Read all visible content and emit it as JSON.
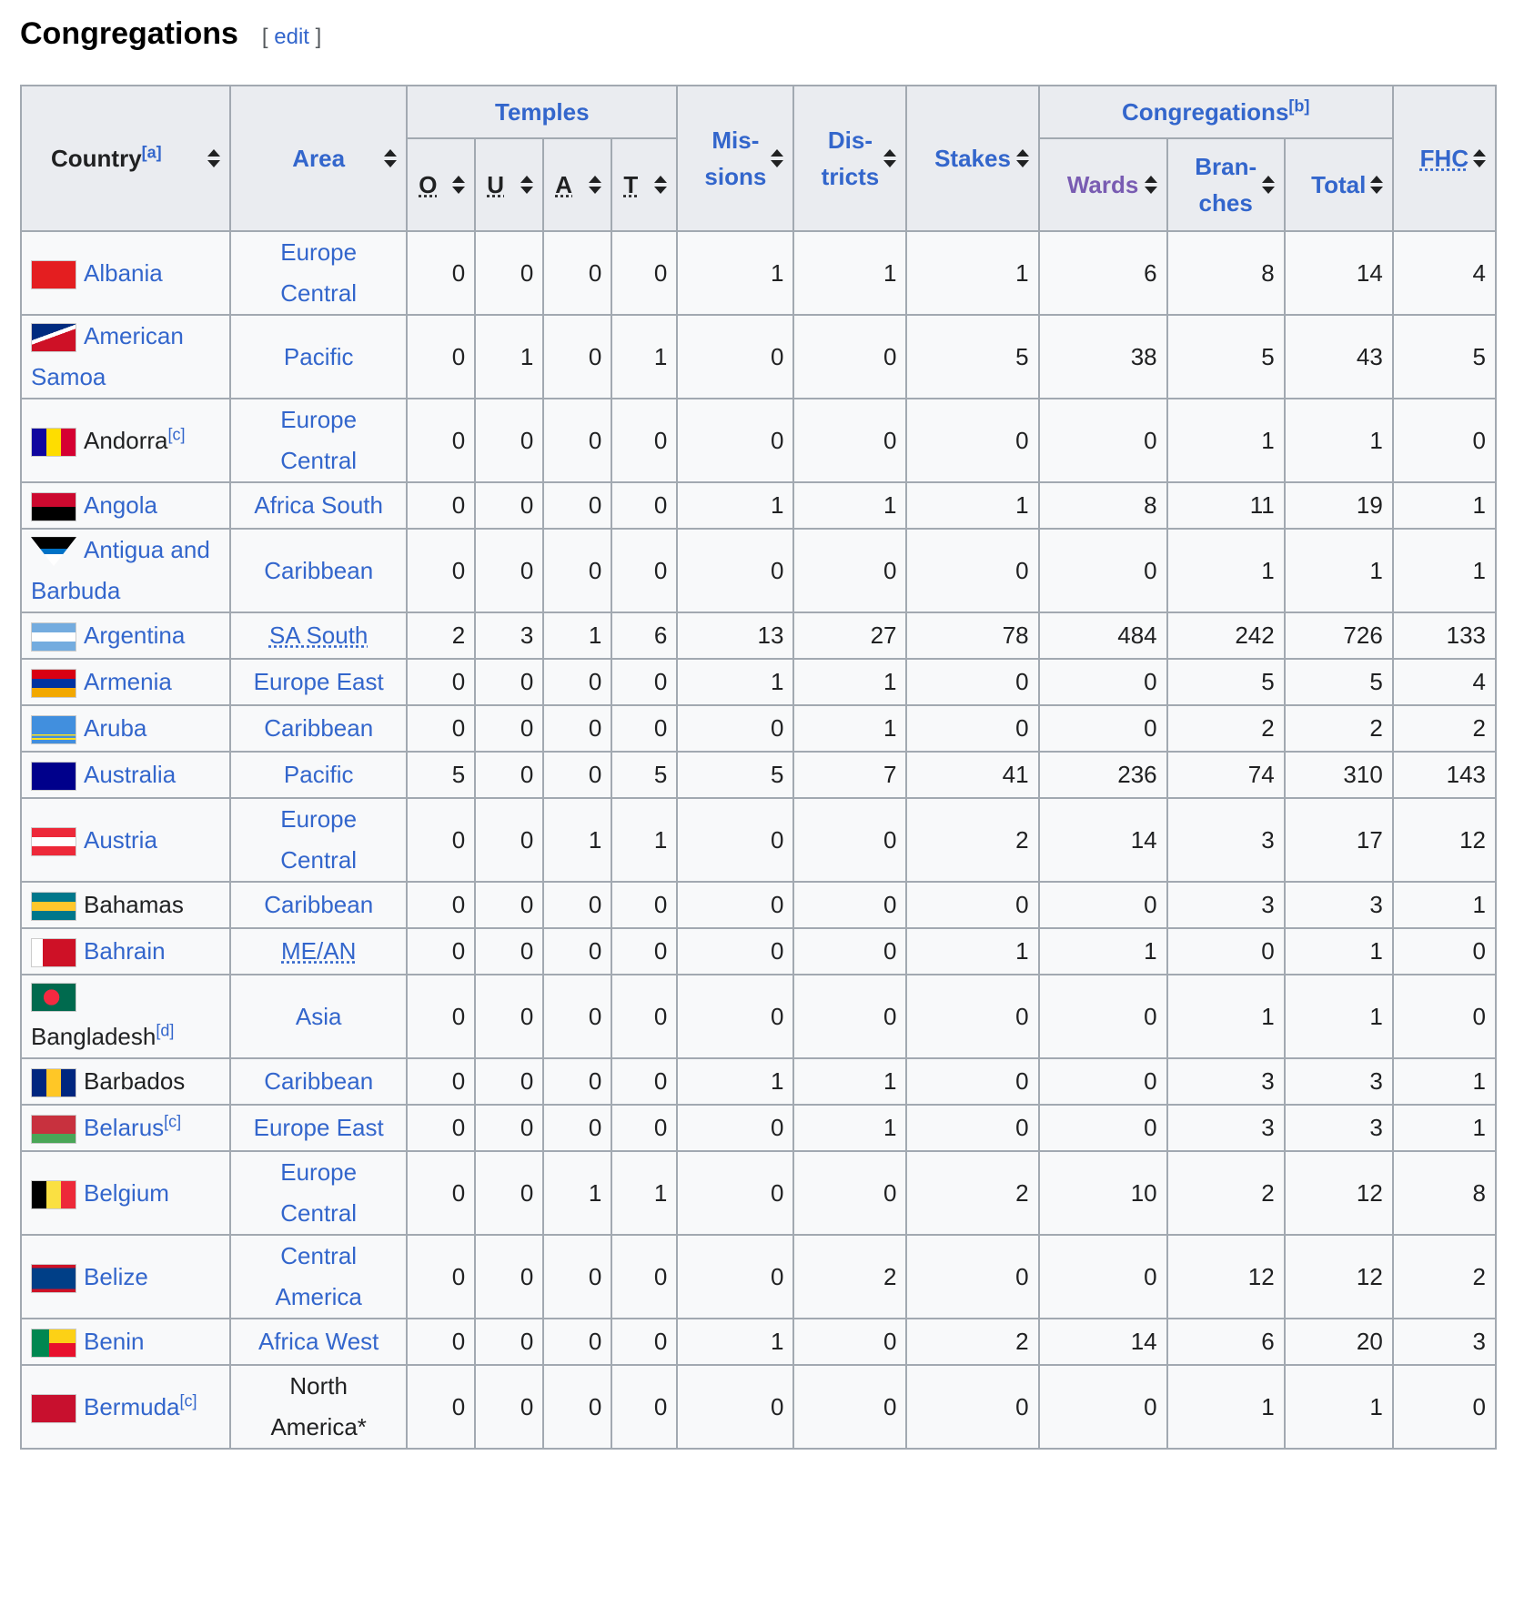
{
  "section": {
    "title": "Congregations",
    "edit_open": "[ ",
    "edit_label": "edit",
    "edit_close": " ]"
  },
  "headers": {
    "country": "Country",
    "country_note": "[a]",
    "area": "Area",
    "temples": "Temples",
    "o": "O",
    "u": "U",
    "a": "A",
    "t": "T",
    "missions_1": "Mis-",
    "missions_2": "sions",
    "districts_1": "Dis-",
    "districts_2": "tricts",
    "stakes": "Stakes",
    "congregations": "Congregations",
    "congregations_note": "[b]",
    "wards": "Wards",
    "branches_1": "Bran-",
    "branches_2": "ches",
    "total": "Total",
    "fhc": "FHC"
  },
  "colors": {
    "link": "#3366cc",
    "visited": "#795cb2",
    "header_bg": "#eaecf0",
    "cell_bg": "#f8f9fa",
    "border": "#a2a9b1"
  },
  "rows": [
    {
      "country": "Albania",
      "note": "",
      "link": true,
      "flag": "albania-flag",
      "area": [
        "Europe",
        "Central"
      ],
      "area_style": "link",
      "vals": [
        "0",
        "0",
        "0",
        "0",
        "1",
        "1",
        "1",
        "6",
        "8",
        "14",
        "4"
      ]
    },
    {
      "country": "American Samoa",
      "note": "",
      "link": true,
      "flag": "american-samoa-flag",
      "area": [
        "Pacific"
      ],
      "area_style": "link",
      "vals": [
        "0",
        "1",
        "0",
        "1",
        "0",
        "0",
        "5",
        "38",
        "5",
        "43",
        "5"
      ]
    },
    {
      "country": "Andorra",
      "note": "[c]",
      "link": false,
      "flag": "andorra-flag",
      "area": [
        "Europe",
        "Central"
      ],
      "area_style": "link",
      "vals": [
        "0",
        "0",
        "0",
        "0",
        "0",
        "0",
        "0",
        "0",
        "1",
        "1",
        "0"
      ]
    },
    {
      "country": "Angola",
      "note": "",
      "link": true,
      "flag": "angola-flag",
      "area": [
        "Africa South"
      ],
      "area_style": "link",
      "vals": [
        "0",
        "0",
        "0",
        "0",
        "1",
        "1",
        "1",
        "8",
        "11",
        "19",
        "1"
      ]
    },
    {
      "country": "Antigua and Barbuda",
      "note": "",
      "link": true,
      "flag": "antigua-flag",
      "area": [
        "Caribbean"
      ],
      "area_style": "link",
      "vals": [
        "0",
        "0",
        "0",
        "0",
        "0",
        "0",
        "0",
        "0",
        "1",
        "1",
        "1"
      ]
    },
    {
      "country": "Argentina",
      "note": "",
      "link": true,
      "flag": "argentina-flag",
      "area": [
        "SA South"
      ],
      "area_style": "abbr",
      "vals": [
        "2",
        "3",
        "1",
        "6",
        "13",
        "27",
        "78",
        "484",
        "242",
        "726",
        "133"
      ]
    },
    {
      "country": "Armenia",
      "note": "",
      "link": true,
      "flag": "armenia-flag",
      "area": [
        "Europe East"
      ],
      "area_style": "link",
      "vals": [
        "0",
        "0",
        "0",
        "0",
        "1",
        "1",
        "0",
        "0",
        "5",
        "5",
        "4"
      ]
    },
    {
      "country": "Aruba",
      "note": "",
      "link": true,
      "flag": "aruba-flag",
      "area": [
        "Caribbean"
      ],
      "area_style": "link",
      "vals": [
        "0",
        "0",
        "0",
        "0",
        "0",
        "1",
        "0",
        "0",
        "2",
        "2",
        "2"
      ]
    },
    {
      "country": "Australia",
      "note": "",
      "link": true,
      "flag": "australia-flag",
      "area": [
        "Pacific"
      ],
      "area_style": "link",
      "vals": [
        "5",
        "0",
        "0",
        "5",
        "5",
        "7",
        "41",
        "236",
        "74",
        "310",
        "143"
      ]
    },
    {
      "country": "Austria",
      "note": "",
      "link": true,
      "flag": "austria-flag",
      "area": [
        "Europe",
        "Central"
      ],
      "area_style": "link",
      "vals": [
        "0",
        "0",
        "1",
        "1",
        "0",
        "0",
        "2",
        "14",
        "3",
        "17",
        "12"
      ]
    },
    {
      "country": "Bahamas",
      "note": "",
      "link": false,
      "flag": "bahamas-flag",
      "area": [
        "Caribbean"
      ],
      "area_style": "link",
      "vals": [
        "0",
        "0",
        "0",
        "0",
        "0",
        "0",
        "0",
        "0",
        "3",
        "3",
        "1"
      ]
    },
    {
      "country": "Bahrain",
      "note": "",
      "link": true,
      "flag": "bahrain-flag",
      "area": [
        "ME/AN"
      ],
      "area_style": "abbr",
      "vals": [
        "0",
        "0",
        "0",
        "0",
        "0",
        "0",
        "1",
        "1",
        "0",
        "1",
        "0"
      ]
    },
    {
      "country": "Bangladesh",
      "note": "[d]",
      "link": false,
      "flag": "bangladesh-flag",
      "area": [
        "Asia"
      ],
      "area_style": "link",
      "vals": [
        "0",
        "0",
        "0",
        "0",
        "0",
        "0",
        "0",
        "0",
        "1",
        "1",
        "0"
      ]
    },
    {
      "country": "Barbados",
      "note": "",
      "link": false,
      "flag": "barbados-flag",
      "area": [
        "Caribbean"
      ],
      "area_style": "link",
      "vals": [
        "0",
        "0",
        "0",
        "0",
        "1",
        "1",
        "0",
        "0",
        "3",
        "3",
        "1"
      ]
    },
    {
      "country": "Belarus",
      "note": "[c]",
      "link": true,
      "flag": "belarus-flag",
      "area": [
        "Europe East"
      ],
      "area_style": "link",
      "vals": [
        "0",
        "0",
        "0",
        "0",
        "0",
        "1",
        "0",
        "0",
        "3",
        "3",
        "1"
      ]
    },
    {
      "country": "Belgium",
      "note": "",
      "link": true,
      "flag": "belgium-flag",
      "area": [
        "Europe",
        "Central"
      ],
      "area_style": "link",
      "vals": [
        "0",
        "0",
        "1",
        "1",
        "0",
        "0",
        "2",
        "10",
        "2",
        "12",
        "8"
      ]
    },
    {
      "country": "Belize",
      "note": "",
      "link": true,
      "flag": "belize-flag",
      "area": [
        "Central",
        "America"
      ],
      "area_style": "link",
      "vals": [
        "0",
        "0",
        "0",
        "0",
        "0",
        "2",
        "0",
        "0",
        "12",
        "12",
        "2"
      ]
    },
    {
      "country": "Benin",
      "note": "",
      "link": true,
      "flag": "benin-flag",
      "area": [
        "Africa West"
      ],
      "area_style": "link",
      "vals": [
        "0",
        "0",
        "0",
        "0",
        "1",
        "0",
        "2",
        "14",
        "6",
        "20",
        "3"
      ]
    },
    {
      "country": "Bermuda",
      "note": "[c]",
      "link": true,
      "flag": "bermuda-flag",
      "area": [
        "North",
        "America*"
      ],
      "area_style": "black",
      "vals": [
        "0",
        "0",
        "0",
        "0",
        "0",
        "0",
        "0",
        "0",
        "1",
        "1",
        "0"
      ]
    }
  ]
}
